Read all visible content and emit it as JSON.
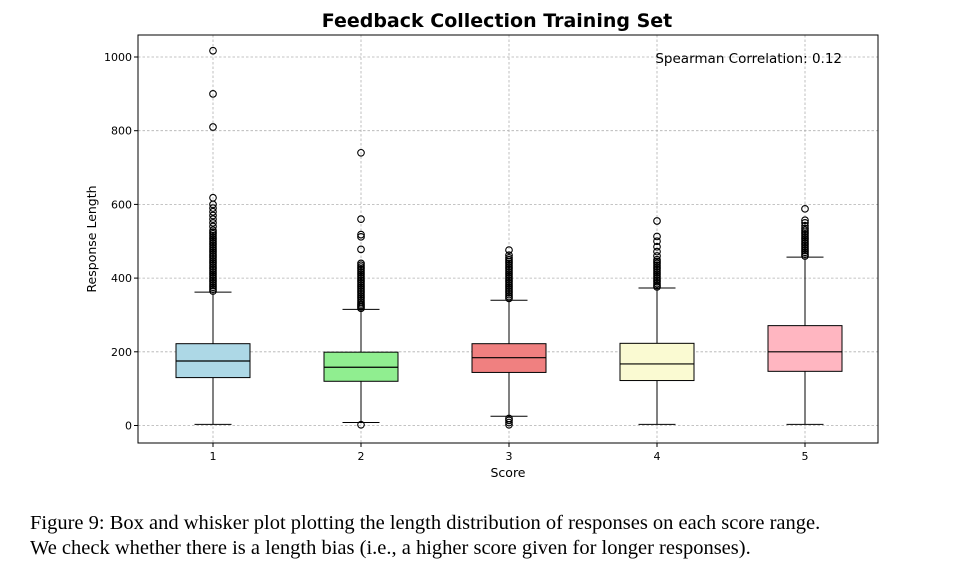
{
  "chart_data": {
    "type": "box",
    "title": "Feedback Collection Training Set",
    "xlabel": "Score",
    "ylabel": "Response Length",
    "categories": [
      "1",
      "2",
      "3",
      "4",
      "5"
    ],
    "yticks": [
      0,
      200,
      400,
      600,
      800,
      1000
    ],
    "ytick_labels": [
      "0",
      "200",
      "400",
      "600",
      "800",
      "1000"
    ],
    "ylim": [
      -45,
      1060
    ],
    "grid": true,
    "annotation": "Spearman Correlation: 0.12",
    "series": [
      {
        "name": "1",
        "color": "#add8e6",
        "whisker_low": 3,
        "q1": 130,
        "median": 175,
        "q3": 222,
        "whisker_high": 362,
        "outliers_low": [],
        "outliers_high": [
          365,
          370,
          375,
          380,
          385,
          390,
          395,
          400,
          405,
          410,
          415,
          420,
          425,
          430,
          435,
          440,
          445,
          450,
          455,
          460,
          465,
          470,
          475,
          480,
          485,
          490,
          495,
          500,
          505,
          510,
          515,
          520,
          525,
          530,
          540,
          550,
          560,
          570,
          580,
          590,
          600,
          618,
          810,
          900,
          1017
        ]
      },
      {
        "name": "2",
        "color": "#90ee90",
        "whisker_low": 8,
        "q1": 120,
        "median": 158,
        "q3": 199,
        "whisker_high": 315,
        "outliers_low": [
          2
        ],
        "outliers_high": [
          318,
          322,
          326,
          330,
          335,
          340,
          345,
          350,
          355,
          360,
          365,
          370,
          375,
          380,
          385,
          390,
          395,
          400,
          405,
          410,
          415,
          420,
          425,
          430,
          435,
          440,
          478,
          512,
          518,
          560,
          740
        ]
      },
      {
        "name": "3",
        "color": "#f08080",
        "whisker_low": 25,
        "q1": 144,
        "median": 184,
        "q3": 222,
        "whisker_high": 340,
        "outliers_low": [
          2,
          8,
          14,
          19
        ],
        "outliers_high": [
          345,
          350,
          355,
          360,
          365,
          370,
          375,
          380,
          385,
          390,
          395,
          400,
          405,
          410,
          415,
          420,
          425,
          430,
          435,
          440,
          445,
          450,
          455,
          462,
          476
        ]
      },
      {
        "name": "4",
        "color": "#fafad2",
        "whisker_low": 3,
        "q1": 122,
        "median": 167,
        "q3": 223,
        "whisker_high": 373,
        "outliers_low": [],
        "outliers_high": [
          376,
          380,
          385,
          390,
          395,
          400,
          405,
          410,
          415,
          420,
          425,
          430,
          435,
          440,
          445,
          450,
          460,
          472,
          485,
          500,
          513,
          555
        ]
      },
      {
        "name": "5",
        "color": "#ffb6c1",
        "whisker_low": 3,
        "q1": 147,
        "median": 200,
        "q3": 271,
        "whisker_high": 457,
        "outliers_low": [],
        "outliers_high": [
          460,
          465,
          470,
          475,
          480,
          485,
          490,
          495,
          500,
          505,
          510,
          515,
          520,
          525,
          530,
          535,
          542,
          550,
          557,
          588
        ]
      }
    ]
  },
  "caption": {
    "line1": "Figure 9:  Box and whisker plot plotting the length distribution of responses on each score range.",
    "line2": "We check whether there is a length bias (i.e., a higher score given for longer responses)."
  }
}
